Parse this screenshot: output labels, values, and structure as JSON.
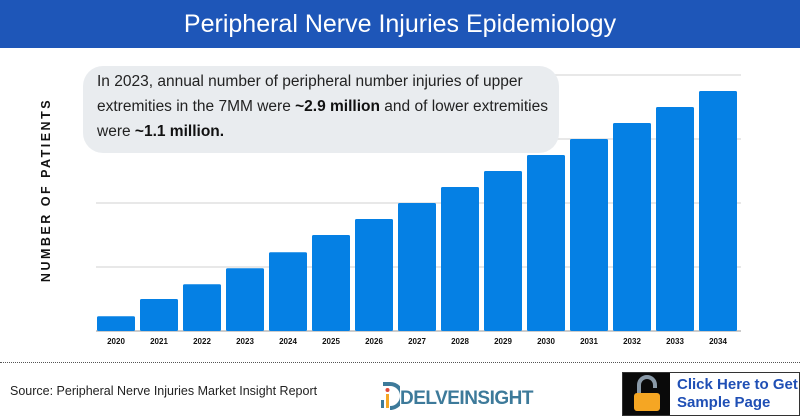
{
  "header": {
    "title": "Peripheral Nerve Injuries Epidemiology"
  },
  "callout": {
    "text_1": "In 2023, annual number of peripheral number injuries of upper extremities in the 7MM were ",
    "bold_1": "~2.9 million",
    "text_2": " and of lower extremities were ",
    "bold_2": "~1.1 million."
  },
  "footer": {
    "source": "Source: Peripheral Nerve Injuries Market Insight Report",
    "logo_text": "DELVEINSIGHT",
    "cta_line_1": "Click Here to Get",
    "cta_line_2": "Sample Page"
  },
  "colors": {
    "header": "#1e56b8",
    "bar": "#0580e4",
    "cta_text": "#1f4fb5",
    "lock": "#f5a623"
  },
  "icons": {
    "cta": "unlocked-padlock-icon"
  },
  "chart_data": {
    "type": "bar",
    "title": "",
    "xlabel": "",
    "ylabel": "NUMBER OF PATIENTS",
    "categories": [
      "2020",
      "2021",
      "2022",
      "2023",
      "2024",
      "2025",
      "2026",
      "2027",
      "2028",
      "2029",
      "2030",
      "2031",
      "2032",
      "2033",
      "2034"
    ],
    "values": [
      0.23,
      0.5,
      0.73,
      0.98,
      1.23,
      1.5,
      1.75,
      2.0,
      2.25,
      2.5,
      2.75,
      3.0,
      3.25,
      3.5,
      3.75
    ],
    "ylim": [
      0,
      4
    ],
    "y_tick_labels_shown": false,
    "grid": true,
    "legend": "none"
  }
}
